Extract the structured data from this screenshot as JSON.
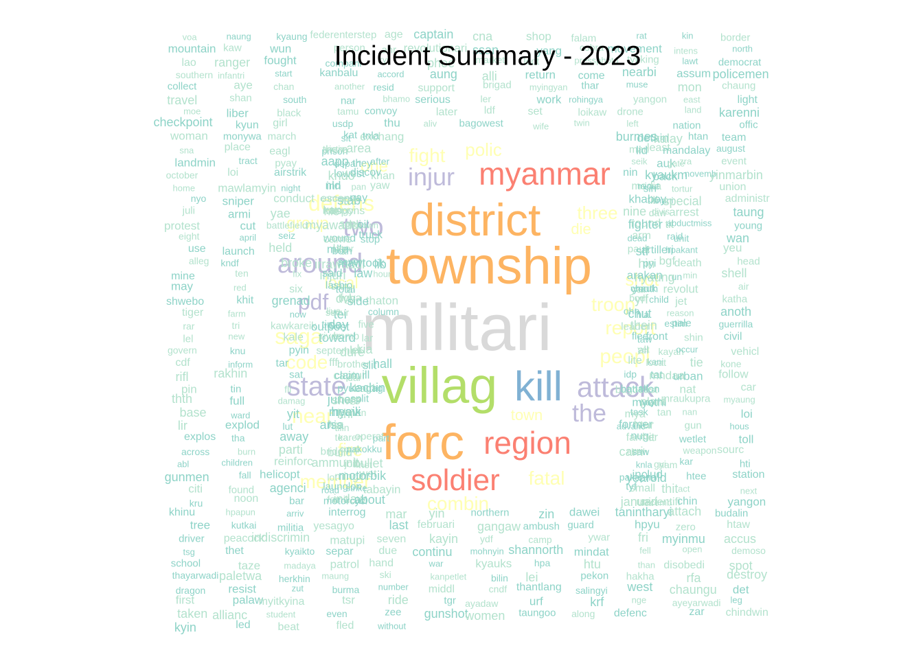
{
  "title": "Incident Summary - 2023",
  "palette": {
    "mint": "#b3e2cd",
    "teal": "#8dd3c7",
    "yellow": "#ffffb3",
    "lavender": "#bebada",
    "salmon": "#fb8072",
    "blue": "#80b1d3",
    "orange": "#fdb462",
    "green": "#b3de69",
    "grey": "#d9d9d9"
  },
  "big_words": [
    {
      "t": "militari",
      "c": "grey"
    },
    {
      "t": "township",
      "c": "orange"
    },
    {
      "t": "district",
      "c": "orange"
    },
    {
      "t": "villag",
      "c": "green"
    },
    {
      "t": "forc",
      "c": "orange"
    },
    {
      "t": "kill",
      "c": "blue"
    },
    {
      "t": "myanmar",
      "c": "salmon"
    },
    {
      "t": "region",
      "c": "salmon"
    },
    {
      "t": "soldier",
      "c": "salmon"
    },
    {
      "t": "attack",
      "c": "lavender"
    },
    {
      "t": "around",
      "c": "lavender"
    },
    {
      "t": "injur",
      "c": "lavender"
    },
    {
      "t": "state",
      "c": "lavender"
    },
    {
      "t": "two",
      "c": "lavender"
    },
    {
      "t": "the",
      "c": "lavender"
    },
    {
      "t": "pdf",
      "c": "lavender"
    },
    {
      "t": "saga",
      "c": "yellow"
    },
    {
      "t": "defens",
      "c": "yellow"
    },
    {
      "t": "near",
      "c": "yellow"
    },
    {
      "t": "code",
      "c": "yellow"
    },
    {
      "t": "fight",
      "c": "yellow"
    },
    {
      "t": "polic",
      "c": "yellow"
    },
    {
      "t": "peopl",
      "c": "yellow"
    },
    {
      "t": "report",
      "c": "yellow"
    },
    {
      "t": "member",
      "c": "yellow"
    },
    {
      "t": "fatal",
      "c": "yellow"
    },
    {
      "t": "combin",
      "c": "yellow"
    },
    {
      "t": "shot",
      "c": "yellow"
    },
    {
      "t": "troop",
      "c": "yellow"
    },
    {
      "t": "three",
      "c": "yellow"
    },
    {
      "t": "one",
      "c": "yellow"
    },
    {
      "t": "group",
      "c": "yellow"
    },
    {
      "t": "local",
      "c": "yellow"
    },
    {
      "t": "fire",
      "c": "yellow"
    },
    {
      "t": "die",
      "c": "yellow"
    },
    {
      "t": "town",
      "c": "yellow"
    }
  ],
  "small_words": [
    "voa",
    "naung",
    "kyaung",
    "federenterstep",
    "age",
    "captain",
    "cna",
    "shop",
    "falam",
    "rat",
    "kin",
    "border",
    "mountain",
    "kaw",
    "wun",
    "person",
    "ahr",
    "revolutionari",
    "ssan",
    "yang",
    "cobra",
    "movement",
    "intens",
    "north",
    "lao",
    "ranger",
    "fought",
    "compani",
    "kyi",
    "phee",
    "market",
    "loot",
    "pressphoto",
    "tykking",
    "lawt",
    "democrat",
    "southern",
    "infantri",
    "start",
    "kanbalu",
    "accord",
    "aung",
    "alli",
    "return",
    "come",
    "nearbi",
    "assum",
    "policemen",
    "collect",
    "aye",
    "chan",
    "another",
    "resid",
    "support",
    "brigad",
    "myingyan",
    "thar",
    "muse",
    "mon",
    "chaung",
    "travel",
    "shan",
    "south",
    "nar",
    "bhamo",
    "serious",
    "ler",
    "work",
    "rohingya",
    "yangon",
    "east",
    "light",
    "moe",
    "liber",
    "black",
    "tamu",
    "convoy",
    "later",
    "ldf",
    "set",
    "loikaw",
    "drone",
    "land",
    "karenni",
    "checkpoint",
    "kyun",
    "girl",
    "usdp",
    "thu",
    "aliv",
    "bagowest",
    "wife",
    "twin",
    "left",
    "nation",
    "offic",
    "woman",
    "monywa",
    "march",
    "sit",
    "exchang",
    "tnla",
    "kat",
    "detain",
    "kalay",
    "burmes",
    "htan",
    "team",
    "sna",
    "place",
    "eagl",
    "prison",
    "victim",
    "there",
    "area",
    "least",
    "man",
    "lid",
    "mandalay",
    "august",
    "landmin",
    "tract",
    "pyay",
    "aapp",
    "after",
    "they",
    "depart",
    "auk",
    "gate",
    "seik",
    "zra",
    "event",
    "october",
    "loi",
    "airstrik",
    "lowest",
    "khan",
    "discov",
    "kndo",
    "kyaukm",
    "back",
    "nin",
    "novemb",
    "yinmarbin",
    "home",
    "mawlamyin",
    "night",
    "nld",
    "yaw",
    "inn",
    "pan",
    "media",
    "sin",
    "minut",
    "tortur",
    "union",
    "nyo",
    "sniper",
    "conduct",
    "stab",
    "command",
    "escap",
    "nay",
    "mani",
    "till",
    "khaboy",
    "special",
    "administr",
    "juli",
    "armi",
    "yae",
    "kan",
    "hle",
    "respons",
    "natogyi",
    "daw",
    "divis",
    "nine",
    "arrest",
    "taung",
    "protest",
    "cut",
    "battlefield",
    "son",
    "myawaddi",
    "unknown",
    "oil",
    "tit",
    "round",
    "fighter",
    "abductmiss",
    "young",
    "eight",
    "april",
    "seiz",
    "wound",
    "came",
    "stop",
    "truck",
    "raid",
    "arm",
    "dead",
    "unit",
    "wan",
    "use",
    "launch",
    "held",
    "kyar",
    "both",
    "mile",
    "lay",
    "artilleri",
    "pauk",
    "stf",
    "hpakant",
    "yeu",
    "alleg",
    "kndf",
    "broke",
    "irrawaddi",
    "lib",
    "sever",
    "mawtook",
    "bgf",
    "hin",
    "pyi",
    "death",
    "head",
    "mine",
    "ten",
    "fix",
    "injuri",
    "hour",
    "law",
    "said",
    "run",
    "nyaung",
    "arakan",
    "min",
    "shell",
    "may",
    "red",
    "six",
    "san",
    "lin",
    "total",
    "lashio",
    "youth",
    "yar",
    "chauk",
    "revolut",
    "air",
    "shwebo",
    "khit",
    "grenad",
    "tigya",
    "thaton",
    "dvb",
    "side",
    "child",
    "yrf",
    "bodi",
    "jet",
    "katha",
    "tiger",
    "farm",
    "now",
    "live",
    "column",
    "tei",
    "secur",
    "chut",
    "hla",
    "ohn",
    "reason",
    "anoth",
    "rar",
    "tri",
    "kawkareik",
    "outpost",
    "time",
    "five",
    "day",
    "estim",
    "leader",
    "thein",
    "pale",
    "guerrilla",
    "lel",
    "new",
    "kale",
    "bomb",
    "toward",
    "river",
    "lar",
    "front",
    "flee",
    "taw",
    "shin",
    "civil",
    "govern",
    "knu",
    "pyin",
    "septemb",
    "let",
    "kia",
    "dure",
    "kayah",
    "all",
    "yet",
    "occur",
    "vehicl",
    "cdf",
    "inform",
    "tar",
    "fff",
    "hall",
    "brother",
    "slit",
    "kani",
    "locat",
    "lite",
    "tie",
    "kone",
    "rifl",
    "rakhin",
    "sat",
    "captur",
    "dar",
    "claim",
    "ill",
    "tat",
    "mndaa",
    "idp",
    "urban",
    "follow",
    "pin",
    "tin",
    "fli",
    "pyu",
    "kachin",
    "battl",
    "engag",
    "srf",
    "bagoeast",
    "battalion",
    "nat",
    "car",
    "thth",
    "full",
    "damag",
    "bago",
    "split",
    "june",
    "shwe",
    "way",
    "plant",
    "myothi",
    "mraukupra",
    "myaung",
    "base",
    "ward",
    "yit",
    "heavi",
    "men",
    "myeik",
    "khi",
    "tan",
    "task",
    "mya",
    "nan",
    "loi",
    "lir",
    "explod",
    "lut",
    "his",
    "arsa",
    "tilin",
    "kgz",
    "former",
    "htar",
    "advanc",
    "gun",
    "hous",
    "explos",
    "tha",
    "away",
    "tea",
    "part",
    "operat",
    "karen",
    "nug",
    "hit",
    "farmer",
    "wetlet",
    "toll",
    "across",
    "burn",
    "parti",
    "build",
    "coup",
    "bridg",
    "pakokku",
    "clash",
    "saw",
    "carri",
    "weapon",
    "sourc",
    "abl",
    "children",
    "reinforc",
    "ammunit",
    "net",
    "bullet",
    "joint",
    "nam",
    "gyi",
    "knla",
    "kar",
    "hti",
    "gunmen",
    "fall",
    "helicopt",
    "lot",
    "mingin",
    "wet",
    "motorbik",
    "pakapha",
    "includ",
    "yearold",
    "htee",
    "station",
    "citi",
    "found",
    "agenci",
    "launglon",
    "tabayin",
    "strike",
    "road",
    "thit",
    "small",
    "tyf",
    "act",
    "next",
    "kru",
    "noon",
    "bar",
    "indaw",
    "about",
    "famili",
    "motorcycl",
    "unidentifi",
    "decemb",
    "januari",
    "chin",
    "yangon",
    "khinu",
    "hpapun",
    "arriv",
    "interrog",
    "mar",
    "yin",
    "northern",
    "zin",
    "dawei",
    "tanintharyi",
    "attach",
    "budalin",
    "tree",
    "kutkai",
    "militia",
    "yesagyo",
    "last",
    "februari",
    "gangaw",
    "ambush",
    "guard",
    "hpyu",
    "zero",
    "htaw",
    "driver",
    "peacock",
    "indiscrimin",
    "matupi",
    "seven",
    "kayin",
    "ydf",
    "camp",
    "ywar",
    "fri",
    "myinmu",
    "accus",
    "tsg",
    "thet",
    "kyaikto",
    "separ",
    "due",
    "continu",
    "mohnyin",
    "shannorth",
    "mindat",
    "fell",
    "open",
    "demoso",
    "school",
    "taze",
    "madaya",
    "patrol",
    "hand",
    "war",
    "kyauks",
    "hpa",
    "htu",
    "than",
    "disobedi",
    "spot",
    "thayarwadi",
    "paletwa",
    "herkhin",
    "maung",
    "ski",
    "kanpetlet",
    "bilin",
    "lei",
    "pekon",
    "hakha",
    "rfa",
    "destroy",
    "dragon",
    "resist",
    "zut",
    "burma",
    "number",
    "middl",
    "cndf",
    "thantlang",
    "salingyi",
    "west",
    "chaungu",
    "det",
    "first",
    "palaw",
    "myitkyina",
    "tsr",
    "ride",
    "tgr",
    "ayadaw",
    "urf",
    "krf",
    "nge",
    "ayeyarwadi",
    "leg",
    "taken",
    "allianc",
    "student",
    "even",
    "zee",
    "gunshot",
    "women",
    "taungoo",
    "along",
    "defenc",
    "zar",
    "chindwin",
    "kyin",
    "led",
    "beat",
    "fled",
    "without"
  ]
}
